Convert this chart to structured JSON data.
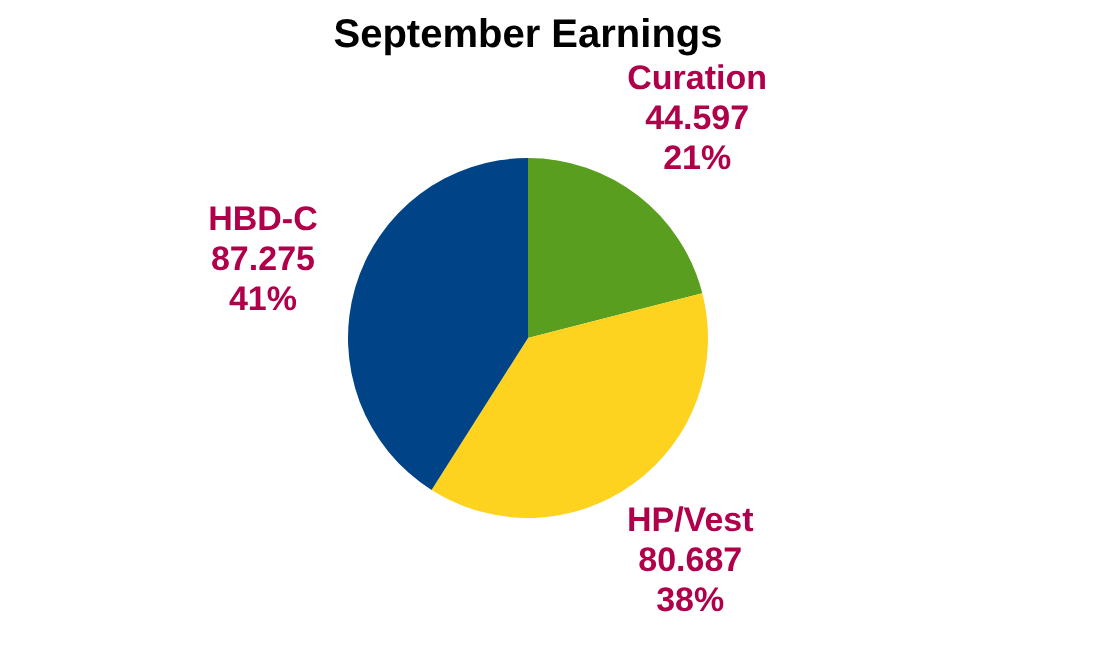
{
  "chart_data": {
    "type": "pie",
    "title": "September Earnings",
    "categories": [
      "Curation",
      "HP/Vest",
      "HBD-C"
    ],
    "values": [
      21,
      38,
      41
    ],
    "colors": [
      "#5a9e1f",
      "#fdd320",
      "#004386"
    ],
    "value_labels": [
      "44.597\n21%",
      "80.687\n38%",
      "87.275\n41%"
    ],
    "legend": false
  }
}
